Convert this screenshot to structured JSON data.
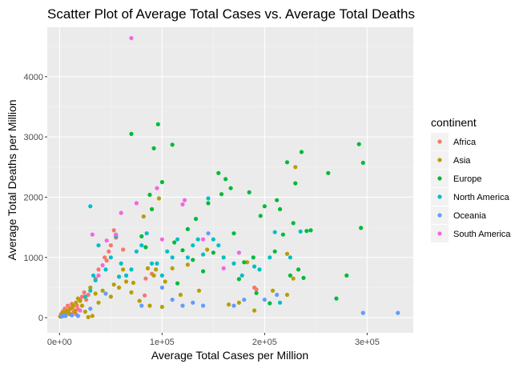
{
  "chart_data": {
    "type": "scatter",
    "title": "Scatter Plot of Average Total Cases vs. Average Total Deaths",
    "xlabel": "Average Total Cases per Million",
    "ylabel": "Average Total Deaths per Million",
    "xlim": [
      -12000,
      345000
    ],
    "ylim": [
      -250,
      4820
    ],
    "x_ticks": [
      {
        "value": 0,
        "label": "0e+00"
      },
      {
        "value": 100000,
        "label": "1e+05"
      },
      {
        "value": 200000,
        "label": "2e+05"
      },
      {
        "value": 300000,
        "label": "3e+05"
      }
    ],
    "y_ticks": [
      {
        "value": 0,
        "label": "0"
      },
      {
        "value": 1000,
        "label": "1000"
      },
      {
        "value": 2000,
        "label": "2000"
      },
      {
        "value": 3000,
        "label": "3000"
      },
      {
        "value": 4000,
        "label": "4000"
      }
    ],
    "grid": true,
    "legend": {
      "title": "continent",
      "position": "right"
    },
    "series": [
      {
        "name": "Africa",
        "color": "#F8766D",
        "points": [
          [
            500,
            20
          ],
          [
            1500,
            60
          ],
          [
            2500,
            40
          ],
          [
            3000,
            100
          ],
          [
            3500,
            30
          ],
          [
            4500,
            80
          ],
          [
            5000,
            150
          ],
          [
            6000,
            50
          ],
          [
            7000,
            120
          ],
          [
            8000,
            200
          ],
          [
            9000,
            90
          ],
          [
            10000,
            160
          ],
          [
            11000,
            60
          ],
          [
            12000,
            230
          ],
          [
            13000,
            180
          ],
          [
            14000,
            100
          ],
          [
            15000,
            120
          ],
          [
            16000,
            60
          ],
          [
            17000,
            200
          ],
          [
            18000,
            140
          ],
          [
            20000,
            300
          ],
          [
            22000,
            350
          ],
          [
            24000,
            420
          ],
          [
            26000,
            300
          ],
          [
            28000,
            380
          ],
          [
            35000,
            650
          ],
          [
            38000,
            800
          ],
          [
            44000,
            1000
          ],
          [
            46000,
            950
          ],
          [
            48000,
            1100
          ],
          [
            50000,
            1200
          ],
          [
            53000,
            1450
          ],
          [
            55000,
            1330
          ],
          [
            62000,
            1130
          ],
          [
            83000,
            370
          ],
          [
            84000,
            650
          ],
          [
            90000,
            730
          ],
          [
            190000,
            500
          ],
          [
            192000,
            470
          ]
        ]
      },
      {
        "name": "Asia",
        "color": "#B79F00",
        "points": [
          [
            1000,
            20
          ],
          [
            2000,
            60
          ],
          [
            3000,
            40
          ],
          [
            4000,
            90
          ],
          [
            5000,
            30
          ],
          [
            6000,
            80
          ],
          [
            8000,
            120
          ],
          [
            10000,
            60
          ],
          [
            11000,
            150
          ],
          [
            13000,
            200
          ],
          [
            15000,
            100
          ],
          [
            16000,
            250
          ],
          [
            18000,
            320
          ],
          [
            20000,
            280
          ],
          [
            22000,
            200
          ],
          [
            25000,
            100
          ],
          [
            28000,
            10
          ],
          [
            30000,
            500
          ],
          [
            32000,
            30
          ],
          [
            35000,
            400
          ],
          [
            38000,
            250
          ],
          [
            42000,
            450
          ],
          [
            50000,
            350
          ],
          [
            53000,
            550
          ],
          [
            58000,
            500
          ],
          [
            62000,
            800
          ],
          [
            65000,
            600
          ],
          [
            70000,
            420
          ],
          [
            72000,
            580
          ],
          [
            78000,
            280
          ],
          [
            82000,
            1680
          ],
          [
            86000,
            820
          ],
          [
            88000,
            200
          ],
          [
            92000,
            700
          ],
          [
            94000,
            800
          ],
          [
            97000,
            1980
          ],
          [
            100000,
            180
          ],
          [
            103000,
            600
          ],
          [
            110000,
            820
          ],
          [
            118000,
            380
          ],
          [
            125000,
            880
          ],
          [
            136000,
            450
          ],
          [
            144000,
            1130
          ],
          [
            165000,
            220
          ],
          [
            175000,
            250
          ],
          [
            183000,
            920
          ],
          [
            190000,
            120
          ],
          [
            208000,
            450
          ],
          [
            222000,
            1060
          ],
          [
            222000,
            380
          ],
          [
            228000,
            650
          ],
          [
            230000,
            2500
          ]
        ]
      },
      {
        "name": "Europe",
        "color": "#00BA38",
        "points": [
          [
            70000,
            3050
          ],
          [
            80000,
            1350
          ],
          [
            84000,
            1170
          ],
          [
            88000,
            2040
          ],
          [
            90000,
            1800
          ],
          [
            92000,
            2810
          ],
          [
            96000,
            3210
          ],
          [
            100000,
            2250
          ],
          [
            110000,
            2870
          ],
          [
            112000,
            1250
          ],
          [
            115000,
            570
          ],
          [
            120000,
            1120
          ],
          [
            125000,
            1470
          ],
          [
            130000,
            960
          ],
          [
            133000,
            1640
          ],
          [
            140000,
            770
          ],
          [
            145000,
            1900
          ],
          [
            150000,
            1080
          ],
          [
            155000,
            2400
          ],
          [
            158000,
            2050
          ],
          [
            162000,
            2300
          ],
          [
            167000,
            2150
          ],
          [
            170000,
            1400
          ],
          [
            175000,
            640
          ],
          [
            180000,
            920
          ],
          [
            185000,
            2080
          ],
          [
            189000,
            1000
          ],
          [
            192000,
            410
          ],
          [
            196000,
            1690
          ],
          [
            200000,
            1850
          ],
          [
            205000,
            240
          ],
          [
            210000,
            1100
          ],
          [
            212000,
            1950
          ],
          [
            215000,
            1800
          ],
          [
            218000,
            1380
          ],
          [
            222000,
            2580
          ],
          [
            225000,
            700
          ],
          [
            228000,
            1570
          ],
          [
            230000,
            2230
          ],
          [
            233000,
            800
          ],
          [
            236000,
            2750
          ],
          [
            238000,
            660
          ],
          [
            241000,
            1440
          ],
          [
            245000,
            1450
          ],
          [
            262000,
            2400
          ],
          [
            270000,
            320
          ],
          [
            280000,
            700
          ],
          [
            292000,
            2880
          ],
          [
            294000,
            1490
          ],
          [
            296000,
            2570
          ]
        ]
      },
      {
        "name": "North America",
        "color": "#00BFC4",
        "points": [
          [
            25000,
            350
          ],
          [
            30000,
            450
          ],
          [
            33000,
            700
          ],
          [
            35000,
            620
          ],
          [
            30000,
            1850
          ],
          [
            38000,
            1200
          ],
          [
            45000,
            800
          ],
          [
            50000,
            1000
          ],
          [
            55000,
            1350
          ],
          [
            58000,
            680
          ],
          [
            60000,
            900
          ],
          [
            65000,
            700
          ],
          [
            70000,
            800
          ],
          [
            75000,
            1100
          ],
          [
            80000,
            1200
          ],
          [
            85000,
            1400
          ],
          [
            90000,
            900
          ],
          [
            95000,
            900
          ],
          [
            100000,
            700
          ],
          [
            105000,
            1100
          ],
          [
            110000,
            1000
          ],
          [
            115000,
            1300
          ],
          [
            125000,
            1000
          ],
          [
            130000,
            1200
          ],
          [
            135000,
            1300
          ],
          [
            140000,
            1050
          ],
          [
            145000,
            1980
          ],
          [
            150000,
            1300
          ],
          [
            155000,
            1200
          ],
          [
            160000,
            1000
          ],
          [
            170000,
            900
          ],
          [
            178000,
            700
          ],
          [
            190000,
            850
          ],
          [
            195000,
            800
          ],
          [
            205000,
            1000
          ],
          [
            210000,
            1420
          ],
          [
            215000,
            250
          ],
          [
            225000,
            1000
          ],
          [
            235000,
            1430
          ]
        ]
      },
      {
        "name": "Oceania",
        "color": "#619CFF",
        "points": [
          [
            2000,
            20
          ],
          [
            4000,
            50
          ],
          [
            6000,
            30
          ],
          [
            12000,
            40
          ],
          [
            18000,
            30
          ],
          [
            30000,
            150
          ],
          [
            45000,
            400
          ],
          [
            80000,
            200
          ],
          [
            100000,
            500
          ],
          [
            110000,
            300
          ],
          [
            120000,
            200
          ],
          [
            130000,
            250
          ],
          [
            140000,
            200
          ],
          [
            145000,
            1400
          ],
          [
            170000,
            200
          ],
          [
            180000,
            300
          ],
          [
            200000,
            300
          ],
          [
            212000,
            380
          ],
          [
            296000,
            80
          ],
          [
            330000,
            80
          ]
        ]
      },
      {
        "name": "South America",
        "color": "#F564E3",
        "points": [
          [
            20000,
            120
          ],
          [
            32000,
            1380
          ],
          [
            38000,
            700
          ],
          [
            42000,
            870
          ],
          [
            46000,
            1280
          ],
          [
            55000,
            1380
          ],
          [
            60000,
            1740
          ],
          [
            70000,
            4640
          ],
          [
            75000,
            1900
          ],
          [
            95000,
            2150
          ],
          [
            100000,
            1300
          ],
          [
            120000,
            1880
          ],
          [
            122000,
            1950
          ],
          [
            140000,
            1300
          ],
          [
            160000,
            820
          ],
          [
            175000,
            1080
          ]
        ]
      }
    ]
  }
}
